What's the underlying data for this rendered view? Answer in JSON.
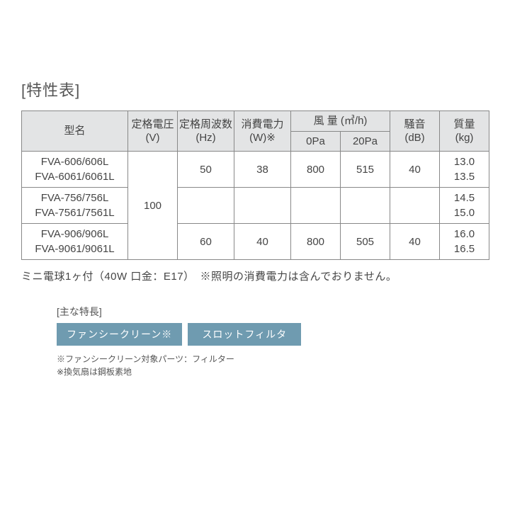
{
  "title": "[特性表]",
  "headers": {
    "model": "型名",
    "voltage": "定格電圧",
    "voltage_unit": "(V)",
    "frequency": "定格周波数",
    "frequency_unit": "(Hz)",
    "power": "消費電力",
    "power_unit": "(W)※",
    "airflow": "風 量  (㎥/h)",
    "airflow_0": "0Pa",
    "airflow_20": "20Pa",
    "noise": "騒音",
    "noise_unit": "(dB)",
    "mass": "質量",
    "mass_unit": "(kg)"
  },
  "voltage_value": "100",
  "rows": [
    {
      "model_line1": "FVA-606/606L",
      "model_line2": "FVA-6061/6061L",
      "freq": "50",
      "power": "38",
      "air0": "800",
      "air20": "515",
      "noise": "40",
      "mass_line1": "13.0",
      "mass_line2": "13.5"
    },
    {
      "model_line1": "FVA-756/756L",
      "model_line2": "FVA-7561/7561L",
      "freq": "",
      "power": "",
      "air0": "",
      "air20": "",
      "noise": "",
      "mass_line1": "14.5",
      "mass_line2": "15.0"
    },
    {
      "model_line1": "FVA-906/906L",
      "model_line2": "FVA-9061/9061L",
      "freq": "60",
      "power": "40",
      "air0": "800",
      "air20": "505",
      "noise": "40",
      "mass_line1": "16.0",
      "mass_line2": "16.5"
    }
  ],
  "footnote": "ミニ電球1ヶ付（40W 口金：E17）　※照明の消費電力は含んでおりません。",
  "features": {
    "title": "[主な特長]",
    "badges": [
      "ファンシークリーン※",
      "スロットフィルタ"
    ],
    "note_line1": "※ファンシークリーン対象パーツ：フィルター",
    "note_line2": "※換気扇は鋼板素地"
  },
  "colors": {
    "header_bg": "#e3e4e5",
    "border": "#888888",
    "text": "#444444",
    "badge_bg": "#6f9bb0",
    "badge_text": "#ffffff",
    "page_bg": "#ffffff"
  }
}
